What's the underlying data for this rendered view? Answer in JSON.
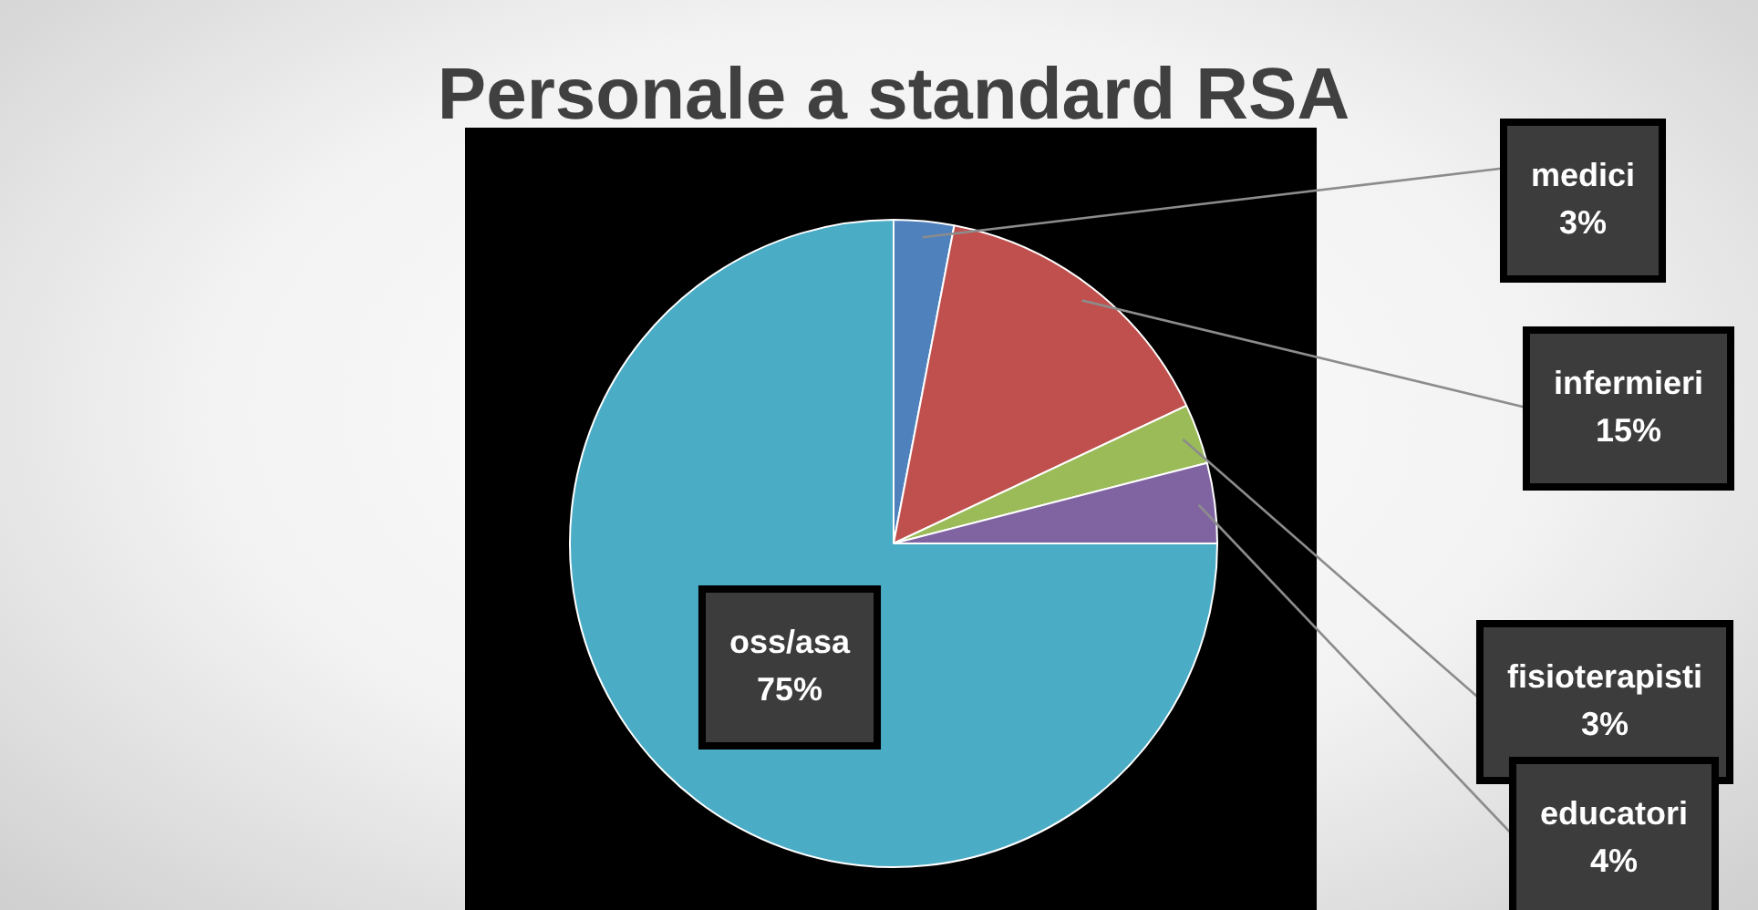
{
  "chart_data": {
    "type": "pie",
    "title": "Personale a standard RSA",
    "categories": [
      "medici",
      "infermieri",
      "fisioterapisti",
      "educatori",
      "oss/asa"
    ],
    "values": [
      3,
      15,
      3,
      4,
      75
    ],
    "value_labels": [
      "3%",
      "15%",
      "3%",
      "4%",
      "75%"
    ],
    "colors": [
      "#4f81bd",
      "#c0504d",
      "#9bbb59",
      "#8064a2",
      "#4bacc6"
    ],
    "legend": false
  }
}
